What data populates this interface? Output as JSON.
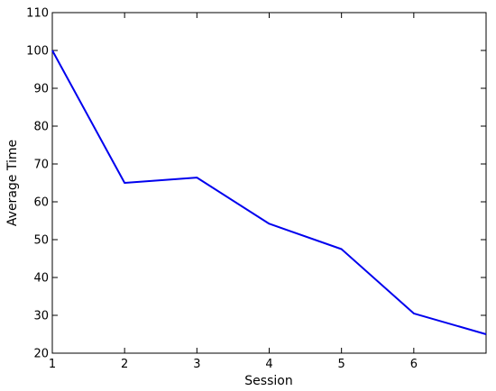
{
  "chart_data": {
    "type": "line",
    "xlabel": "Session",
    "ylabel": "Average Time",
    "xlim": [
      1,
      7
    ],
    "ylim": [
      20,
      110
    ],
    "x_ticks": [
      1,
      2,
      3,
      4,
      5,
      6
    ],
    "y_ticks": [
      20,
      30,
      40,
      50,
      60,
      70,
      80,
      90,
      100,
      110
    ],
    "grid": false,
    "series": [
      {
        "x": [
          1,
          2,
          3,
          4,
          5,
          6,
          7
        ],
        "values": [
          100,
          65,
          66.4,
          54.2,
          47.5,
          30.5,
          25
        ],
        "color": "#0000ee"
      }
    ]
  }
}
